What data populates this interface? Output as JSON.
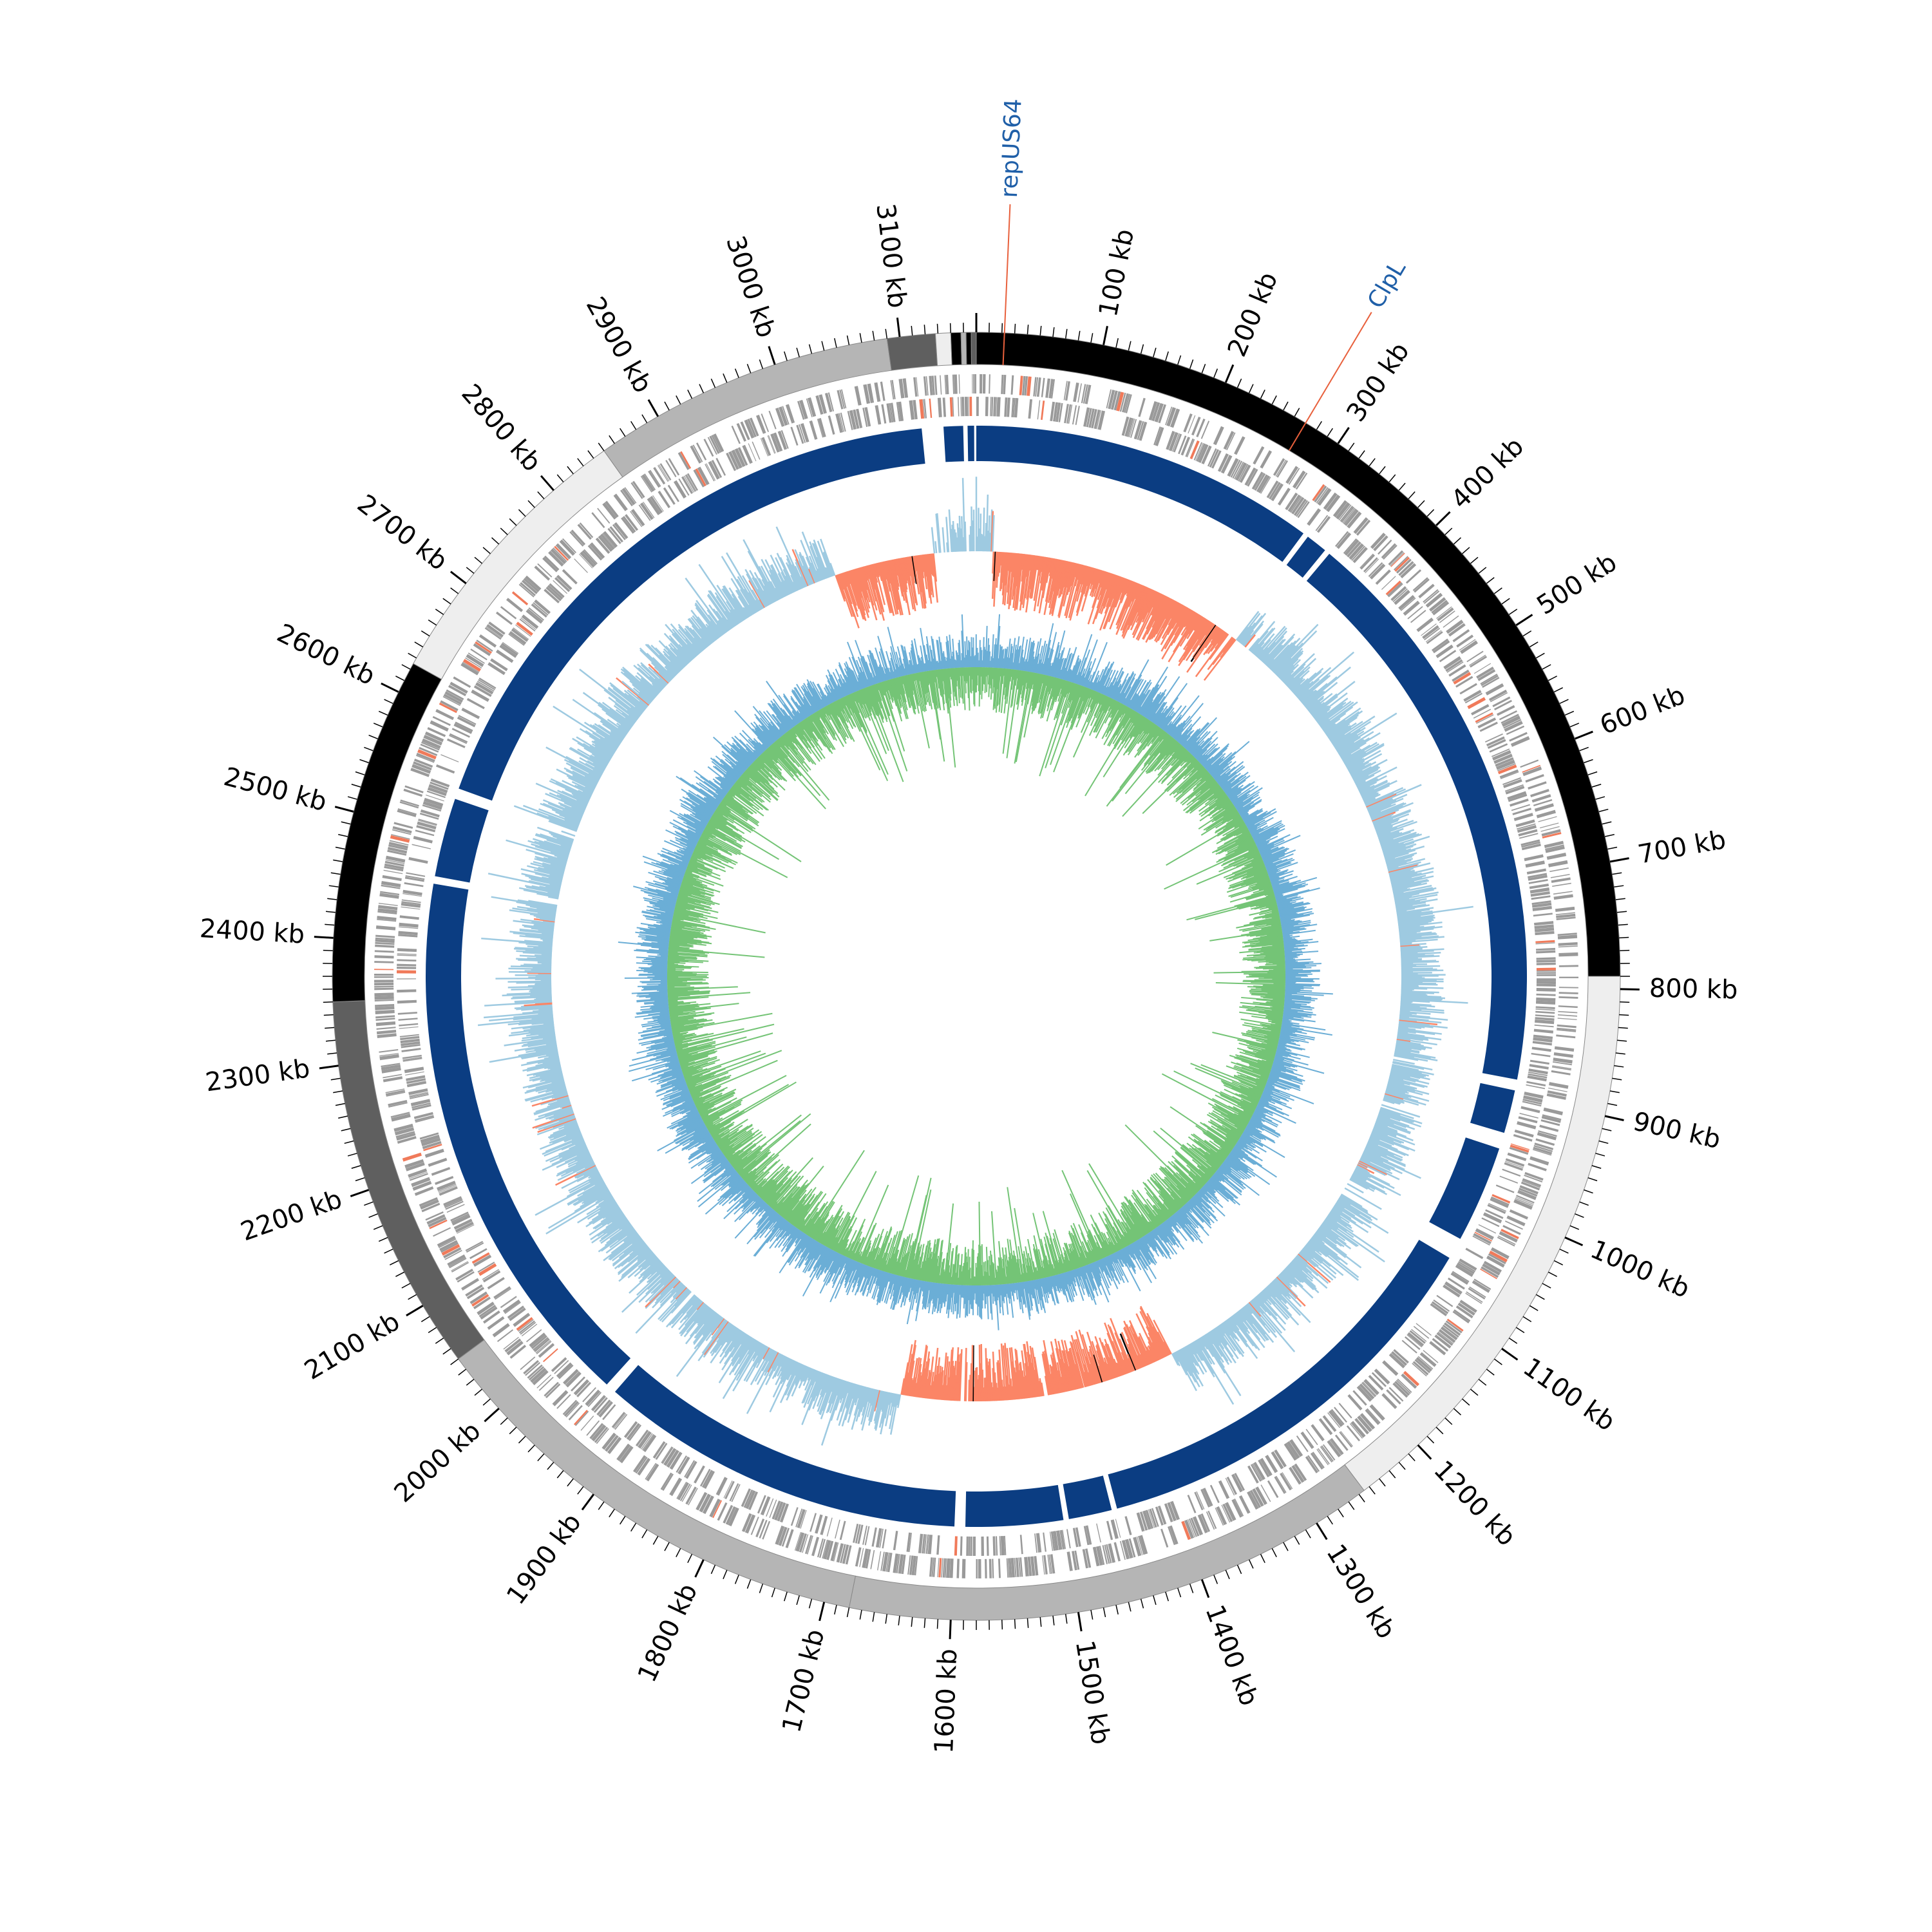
{
  "genome": {
    "total_kb": 3160,
    "tick_labels": [
      {
        "kb": 100,
        "text": "100 kb"
      },
      {
        "kb": 200,
        "text": "200 kb"
      },
      {
        "kb": 300,
        "text": "300 kb"
      },
      {
        "kb": 400,
        "text": "400 kb"
      },
      {
        "kb": 500,
        "text": "500 kb"
      },
      {
        "kb": 600,
        "text": "600 kb"
      },
      {
        "kb": 700,
        "text": "700 kb"
      },
      {
        "kb": 800,
        "text": "800 kb"
      },
      {
        "kb": 900,
        "text": "900 kb"
      },
      {
        "kb": 1000,
        "text": "1000 kb"
      },
      {
        "kb": 1100,
        "text": "1100 kb"
      },
      {
        "kb": 1200,
        "text": "1200 kb"
      },
      {
        "kb": 1300,
        "text": "1300 kb"
      },
      {
        "kb": 1400,
        "text": "1400 kb"
      },
      {
        "kb": 1500,
        "text": "1500 kb"
      },
      {
        "kb": 1600,
        "text": "1600 kb"
      },
      {
        "kb": 1700,
        "text": "1700 kb"
      },
      {
        "kb": 1800,
        "text": "1800 kb"
      },
      {
        "kb": 1900,
        "text": "1900 kb"
      },
      {
        "kb": 2000,
        "text": "2000 kb"
      },
      {
        "kb": 2100,
        "text": "2100 kb"
      },
      {
        "kb": 2200,
        "text": "2200 kb"
      },
      {
        "kb": 2300,
        "text": "2300 kb"
      },
      {
        "kb": 2400,
        "text": "2400 kb"
      },
      {
        "kb": 2500,
        "text": "2500 kb"
      },
      {
        "kb": 2600,
        "text": "2600 kb"
      },
      {
        "kb": 2700,
        "text": "2700 kb"
      },
      {
        "kb": 2800,
        "text": "2800 kb"
      },
      {
        "kb": 2900,
        "text": "2900 kb"
      },
      {
        "kb": 3000,
        "text": "3000 kb"
      },
      {
        "kb": 3100,
        "text": "3100 kb"
      }
    ],
    "gene_labels": [
      {
        "kb": 22,
        "text": "repUS64"
      },
      {
        "kb": 270,
        "text": "ClpL"
      }
    ],
    "contigs": [
      {
        "start": 0,
        "end": 790,
        "color": "#000000"
      },
      {
        "start": 790,
        "end": 1255,
        "color": "#eeeeee"
      },
      {
        "start": 1255,
        "end": 1680,
        "color": "#b5b5b5"
      },
      {
        "start": 1680,
        "end": 2050,
        "color": "#b5b5b5"
      },
      {
        "start": 2050,
        "end": 2350,
        "color": "#5f5f5f"
      },
      {
        "start": 2350,
        "end": 2625,
        "color": "#000000"
      },
      {
        "start": 2625,
        "end": 2850,
        "color": "#eeeeee"
      },
      {
        "start": 2850,
        "end": 3090,
        "color": "#b5b5b5"
      },
      {
        "start": 3090,
        "end": 3128,
        "color": "#5f5f5f"
      },
      {
        "start": 3128,
        "end": 3140,
        "color": "#eeeeee"
      },
      {
        "start": 3140,
        "end": 3148,
        "color": "#000000"
      },
      {
        "start": 3148,
        "end": 3152,
        "color": "#b5b5b5"
      },
      {
        "start": 3152,
        "end": 3156,
        "color": "#000000"
      },
      {
        "start": 3156,
        "end": 3160,
        "color": "#5f5f5f"
      }
    ],
    "blast_segments": [
      {
        "start": 0,
        "end": 320
      },
      {
        "start": 325,
        "end": 345
      },
      {
        "start": 350,
        "end": 885
      },
      {
        "start": 895,
        "end": 935
      },
      {
        "start": 950,
        "end": 1040
      },
      {
        "start": 1060,
        "end": 1450
      },
      {
        "start": 1455,
        "end": 1495
      },
      {
        "start": 1500,
        "end": 1590
      },
      {
        "start": 1600,
        "end": 1940
      },
      {
        "start": 1950,
        "end": 2455
      },
      {
        "start": 2462,
        "end": 2535
      },
      {
        "start": 2545,
        "end": 3110
      },
      {
        "start": 3130,
        "end": 3148
      },
      {
        "start": 3152,
        "end": 3158
      }
    ],
    "gc_skew_negative_regions": [
      {
        "start": 20,
        "end": 330
      },
      {
        "start": 1340,
        "end": 1670
      },
      {
        "start": 2990,
        "end": 3110
      }
    ],
    "colors": {
      "blast": "#0b3d82",
      "cds": "#9a9a9a",
      "cds_highlight": "#f07a5a",
      "gc_skew_positive": "#9ecae1",
      "gc_skew_negative": "#fb8566",
      "gc_content": "#6baed6",
      "gc_deviation": "#74c476",
      "label_line": "#e8603c",
      "label_text": "#1f5fa8"
    }
  }
}
